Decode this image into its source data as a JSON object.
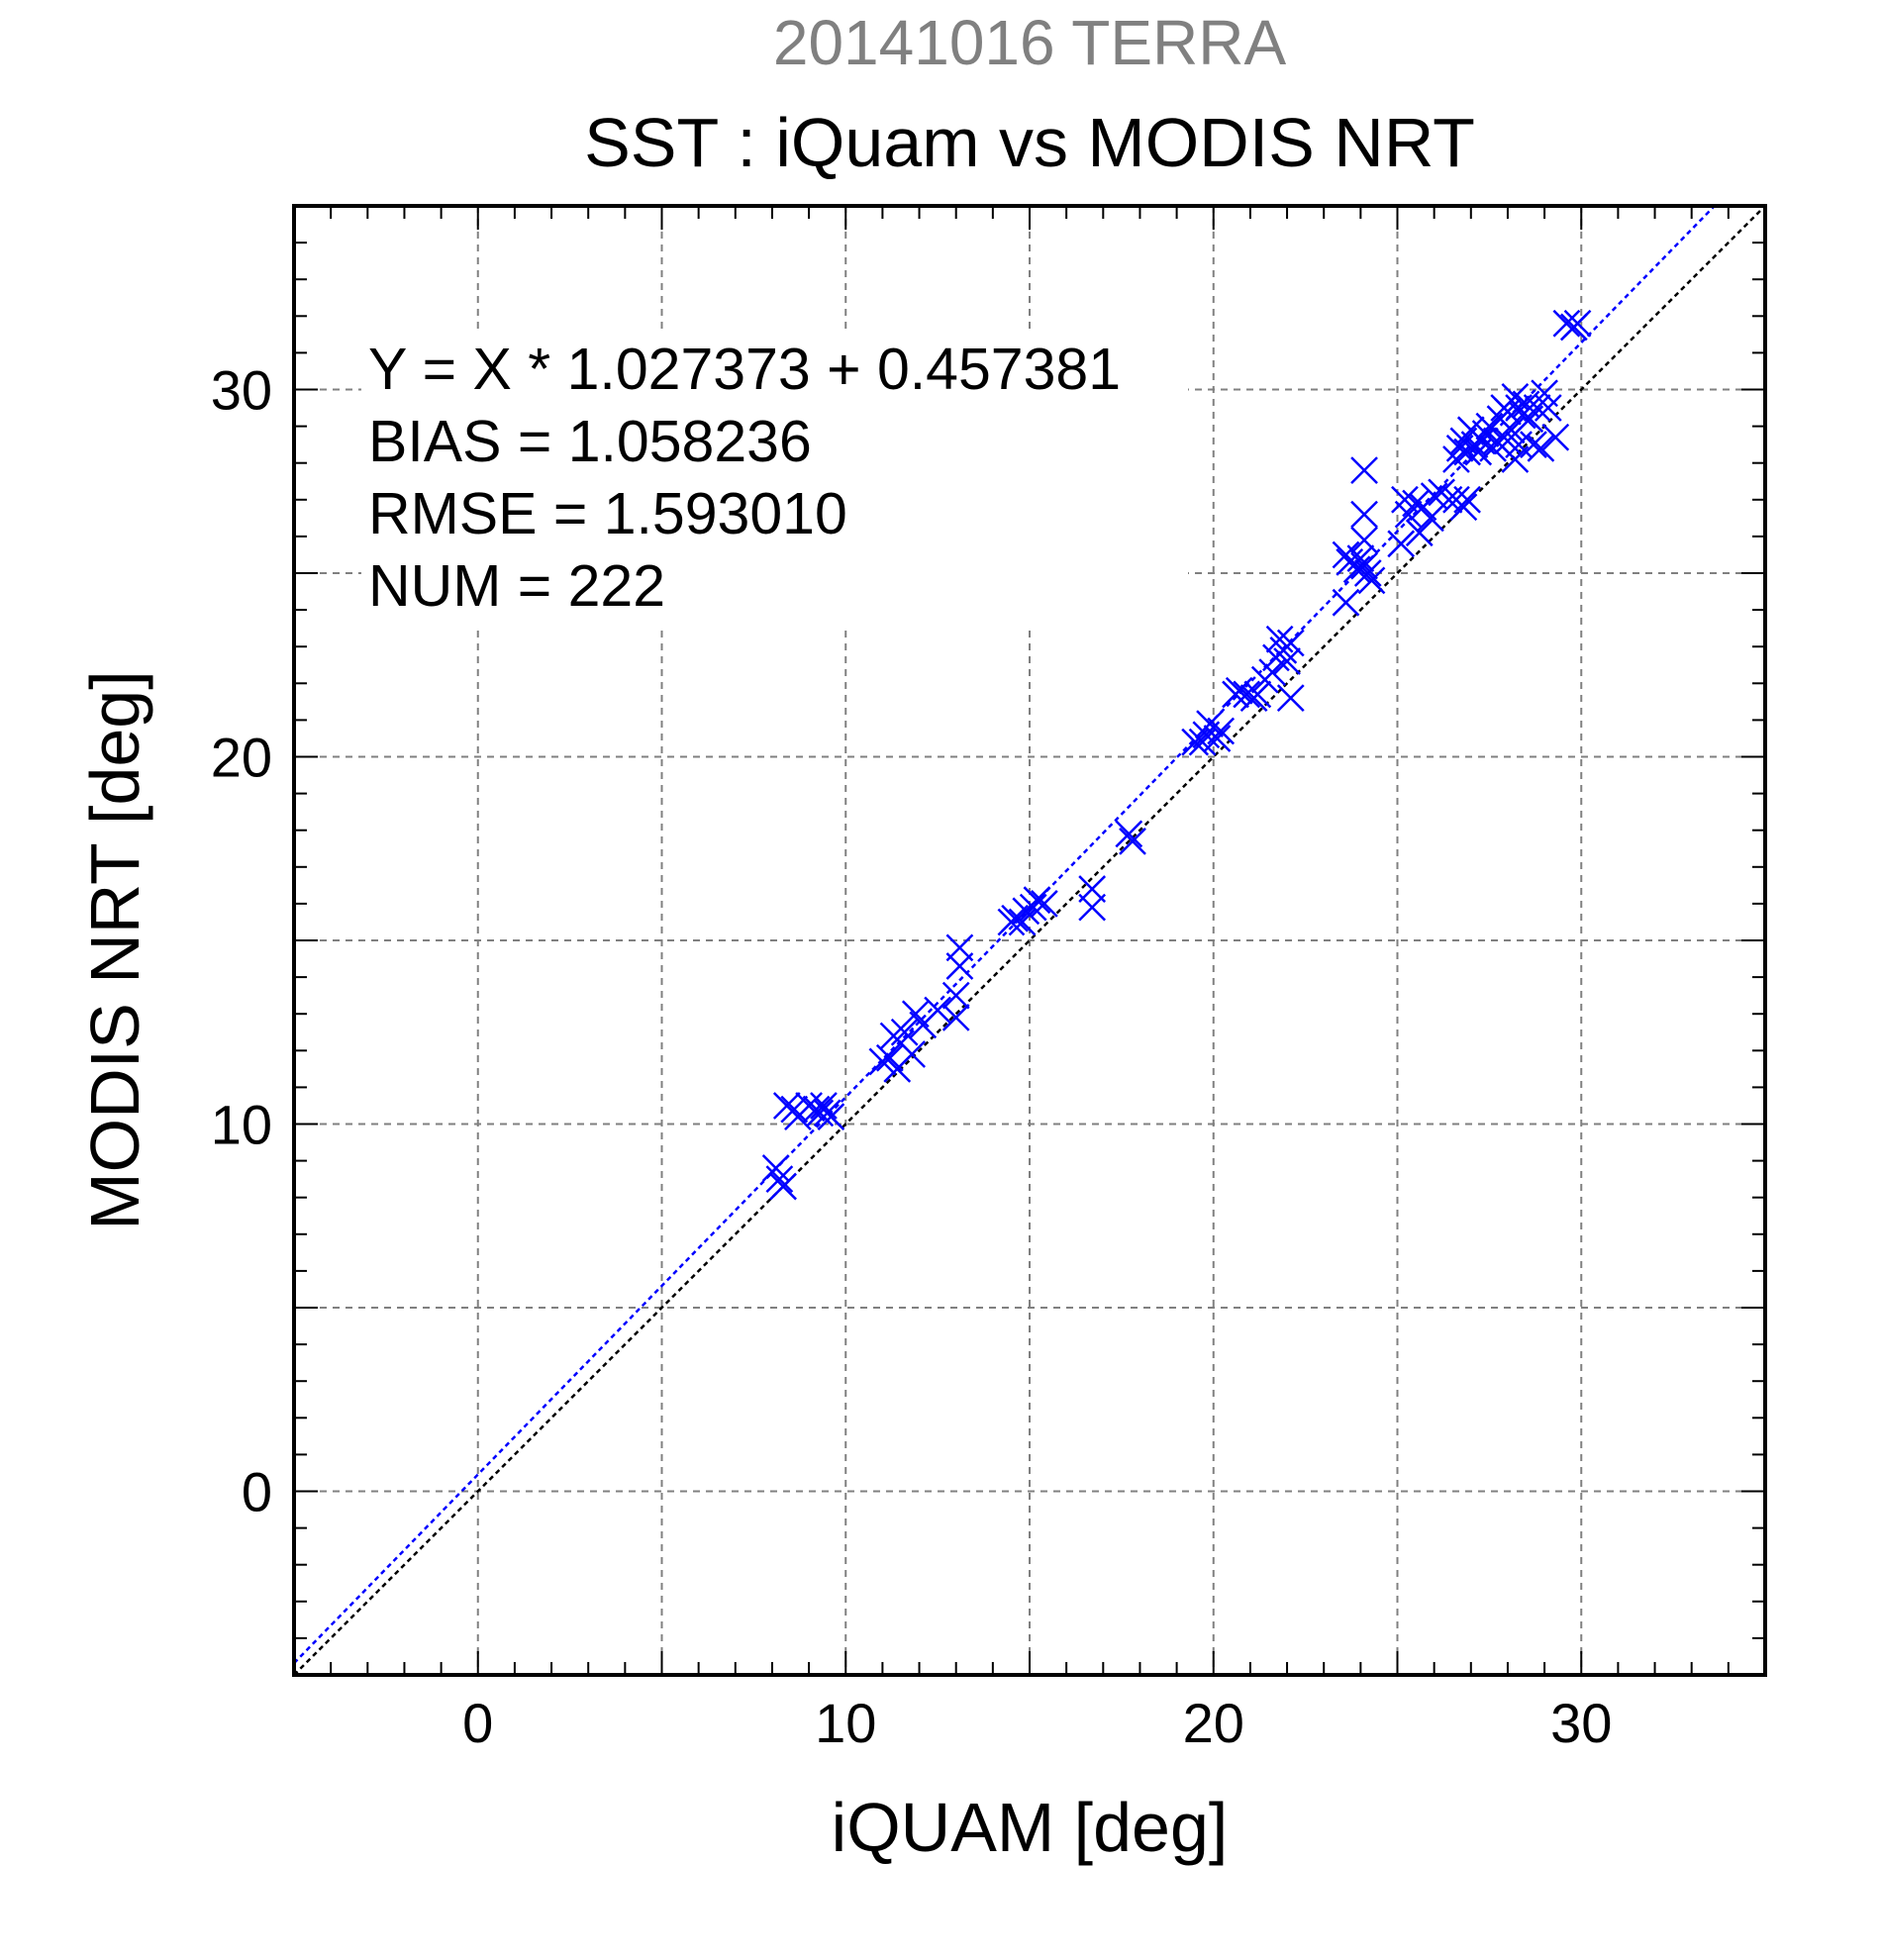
{
  "title": "20141016 TERRA",
  "subtitle": "SST : iQuam vs MODIS NRT",
  "stats": {
    "regression": "Y = X * 1.027373 + 0.457381",
    "bias": "BIAS = 1.058236",
    "rmse": "RMSE = 1.593010",
    "num": "NUM = 222"
  },
  "colors": {
    "series": "#0000ff",
    "one_to_one": "#000000",
    "grid": "#808080",
    "title": "#808080"
  },
  "chart_data": {
    "type": "scatter",
    "title": "20141016 TERRA",
    "subtitle": "SST : iQuam vs MODIS NRT",
    "xlabel": "iQUAM [deg]",
    "ylabel": "MODIS NRT [deg]",
    "xlim": [
      -5,
      35
    ],
    "ylim": [
      -5,
      35
    ],
    "xticks": [
      0,
      10,
      20,
      30
    ],
    "yticks": [
      0,
      10,
      20,
      30
    ],
    "grid": true,
    "marker": "x",
    "regression": {
      "slope": 1.027373,
      "intercept": 0.457381
    },
    "reference_line": {
      "slope": 1,
      "intercept": 0
    },
    "series": [
      {
        "points": [
          [
            8.1,
            8.8
          ],
          [
            8.2,
            8.5
          ],
          [
            8.3,
            8.3
          ],
          [
            8.4,
            10.5
          ],
          [
            8.6,
            10.4
          ],
          [
            8.7,
            10.2
          ],
          [
            9.0,
            10.5
          ],
          [
            9.2,
            10.4
          ],
          [
            9.3,
            10.3
          ],
          [
            9.4,
            10.5
          ],
          [
            9.5,
            10.3
          ],
          [
            9.6,
            10.2
          ],
          [
            11.0,
            11.7
          ],
          [
            11.2,
            11.8
          ],
          [
            11.3,
            12.4
          ],
          [
            11.4,
            11.5
          ],
          [
            11.5,
            12.2
          ],
          [
            11.6,
            12.5
          ],
          [
            11.8,
            11.9
          ],
          [
            11.9,
            13.0
          ],
          [
            12.1,
            12.7
          ],
          [
            12.5,
            13.1
          ],
          [
            13.0,
            13.5
          ],
          [
            13.0,
            12.9
          ],
          [
            13.1,
            14.3
          ],
          [
            13.1,
            14.8
          ],
          [
            14.5,
            15.5
          ],
          [
            14.6,
            15.6
          ],
          [
            14.8,
            15.5
          ],
          [
            14.9,
            15.8
          ],
          [
            15.1,
            15.9
          ],
          [
            15.2,
            16.1
          ],
          [
            15.4,
            16.0
          ],
          [
            16.7,
            16.4
          ],
          [
            16.7,
            15.9
          ],
          [
            17.7,
            17.9
          ],
          [
            17.8,
            17.7
          ],
          [
            19.5,
            20.4
          ],
          [
            19.7,
            20.4
          ],
          [
            19.8,
            20.6
          ],
          [
            19.9,
            20.9
          ],
          [
            20.1,
            20.5
          ],
          [
            20.2,
            20.7
          ],
          [
            20.6,
            21.7
          ],
          [
            20.7,
            21.8
          ],
          [
            20.9,
            21.7
          ],
          [
            21.1,
            21.6
          ],
          [
            21.2,
            21.7
          ],
          [
            21.4,
            22.1
          ],
          [
            21.6,
            22.3
          ],
          [
            21.7,
            22.7
          ],
          [
            21.8,
            23.2
          ],
          [
            21.9,
            22.9
          ],
          [
            22.0,
            22.6
          ],
          [
            22.1,
            23.1
          ],
          [
            22.1,
            21.6
          ],
          [
            23.6,
            24.2
          ],
          [
            23.6,
            25.5
          ],
          [
            23.7,
            25.3
          ],
          [
            23.9,
            25.1
          ],
          [
            24.0,
            25.4
          ],
          [
            24.1,
            25.2
          ],
          [
            24.1,
            25.9
          ],
          [
            24.1,
            26.6
          ],
          [
            24.2,
            25.0
          ],
          [
            24.3,
            24.8
          ],
          [
            24.1,
            27.8
          ],
          [
            25.1,
            25.8
          ],
          [
            25.2,
            27.0
          ],
          [
            25.3,
            26.6
          ],
          [
            25.5,
            26.9
          ],
          [
            25.6,
            26.1
          ],
          [
            25.7,
            26.8
          ],
          [
            25.9,
            26.5
          ],
          [
            26.0,
            27.1
          ],
          [
            26.2,
            27.2
          ],
          [
            26.4,
            27.0
          ],
          [
            26.6,
            27.0
          ],
          [
            26.8,
            26.8
          ],
          [
            26.9,
            27.0
          ],
          [
            26.6,
            28.1
          ],
          [
            26.7,
            28.4
          ],
          [
            26.8,
            28.6
          ],
          [
            26.9,
            28.3
          ],
          [
            27.0,
            28.9
          ],
          [
            27.1,
            28.5
          ],
          [
            27.2,
            28.3
          ],
          [
            27.3,
            28.6
          ],
          [
            27.4,
            28.8
          ],
          [
            27.5,
            29.0
          ],
          [
            27.6,
            28.4
          ],
          [
            27.7,
            28.6
          ],
          [
            27.8,
            29.2
          ],
          [
            27.9,
            29.5
          ],
          [
            28.0,
            28.6
          ],
          [
            28.0,
            29.4
          ],
          [
            28.1,
            28.9
          ],
          [
            28.2,
            29.8
          ],
          [
            28.3,
            29.5
          ],
          [
            28.4,
            29.3
          ],
          [
            28.5,
            29.6
          ],
          [
            28.6,
            29.2
          ],
          [
            28.8,
            29.5
          ],
          [
            29.0,
            29.9
          ],
          [
            29.1,
            29.5
          ],
          [
            28.2,
            28.1
          ],
          [
            28.3,
            28.5
          ],
          [
            28.7,
            28.5
          ],
          [
            28.9,
            28.4
          ],
          [
            29.3,
            28.7
          ],
          [
            29.8,
            31.7
          ],
          [
            29.9,
            31.8
          ],
          [
            29.6,
            31.8
          ]
        ]
      }
    ]
  }
}
